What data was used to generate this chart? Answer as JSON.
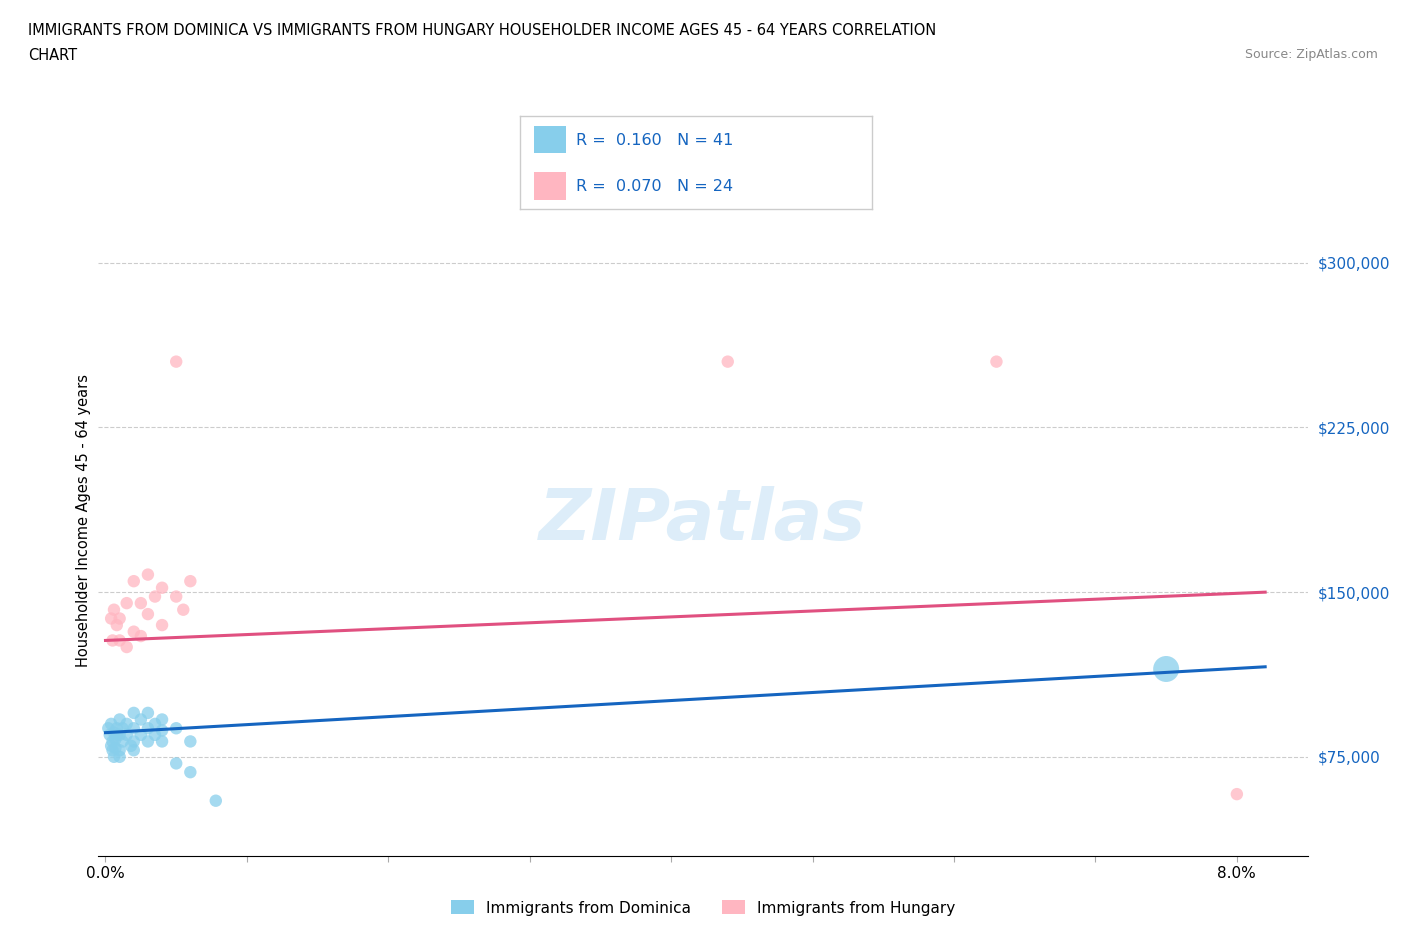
{
  "title_line1": "IMMIGRANTS FROM DOMINICA VS IMMIGRANTS FROM HUNGARY HOUSEHOLDER INCOME AGES 45 - 64 YEARS CORRELATION",
  "title_line2": "CHART",
  "source": "Source: ZipAtlas.com",
  "ylabel": "Householder Income Ages 45 - 64 years",
  "xlim": [
    -0.0005,
    0.085
  ],
  "ylim": [
    30000,
    335000
  ],
  "yticks": [
    75000,
    150000,
    225000,
    300000
  ],
  "ytick_labels": [
    "$75,000",
    "$150,000",
    "$225,000",
    "$300,000"
  ],
  "xticks": [
    0.0,
    0.01,
    0.02,
    0.03,
    0.04,
    0.05,
    0.06,
    0.07,
    0.08
  ],
  "xtick_labels": [
    "0.0%",
    "",
    "",
    "",
    "",
    "",
    "",
    "",
    "8.0%"
  ],
  "dominica_color": "#87CEEB",
  "hungary_color": "#FFB6C1",
  "dominica_line_color": "#1565C0",
  "hungary_line_color": "#E05080",
  "dominica_R": 0.16,
  "dominica_N": 41,
  "hungary_R": 0.07,
  "hungary_N": 24,
  "legend_R_color": "#1565C0",
  "watermark": "ZIPatlas",
  "dominica_points": [
    [
      0.0002,
      88000
    ],
    [
      0.0003,
      85000
    ],
    [
      0.0004,
      80000
    ],
    [
      0.0004,
      90000
    ],
    [
      0.0005,
      82000
    ],
    [
      0.0005,
      78000
    ],
    [
      0.0006,
      86000
    ],
    [
      0.0006,
      75000
    ],
    [
      0.0007,
      83000
    ],
    [
      0.0007,
      79000
    ],
    [
      0.0008,
      85000
    ],
    [
      0.0008,
      88000
    ],
    [
      0.001,
      92000
    ],
    [
      0.001,
      85000
    ],
    [
      0.001,
      78000
    ],
    [
      0.001,
      75000
    ],
    [
      0.0012,
      88000
    ],
    [
      0.0012,
      82000
    ],
    [
      0.0015,
      90000
    ],
    [
      0.0015,
      85000
    ],
    [
      0.0018,
      80000
    ],
    [
      0.002,
      95000
    ],
    [
      0.002,
      88000
    ],
    [
      0.002,
      82000
    ],
    [
      0.002,
      78000
    ],
    [
      0.0025,
      92000
    ],
    [
      0.0025,
      85000
    ],
    [
      0.003,
      95000
    ],
    [
      0.003,
      88000
    ],
    [
      0.003,
      82000
    ],
    [
      0.0035,
      90000
    ],
    [
      0.0035,
      85000
    ],
    [
      0.004,
      92000
    ],
    [
      0.004,
      87000
    ],
    [
      0.004,
      82000
    ],
    [
      0.005,
      88000
    ],
    [
      0.005,
      72000
    ],
    [
      0.006,
      82000
    ],
    [
      0.006,
      68000
    ],
    [
      0.0078,
      55000
    ],
    [
      0.075,
      115000
    ]
  ],
  "dominica_sizes": [
    80,
    80,
    80,
    80,
    80,
    80,
    80,
    80,
    80,
    80,
    80,
    80,
    80,
    80,
    80,
    80,
    80,
    80,
    80,
    80,
    80,
    80,
    80,
    80,
    80,
    80,
    80,
    80,
    80,
    80,
    80,
    80,
    80,
    80,
    80,
    80,
    80,
    80,
    80,
    80,
    350
  ],
  "hungary_points": [
    [
      0.0004,
      138000
    ],
    [
      0.0005,
      128000
    ],
    [
      0.0006,
      142000
    ],
    [
      0.0008,
      135000
    ],
    [
      0.001,
      128000
    ],
    [
      0.001,
      138000
    ],
    [
      0.0015,
      125000
    ],
    [
      0.0015,
      145000
    ],
    [
      0.002,
      132000
    ],
    [
      0.002,
      155000
    ],
    [
      0.0025,
      130000
    ],
    [
      0.0025,
      145000
    ],
    [
      0.003,
      158000
    ],
    [
      0.003,
      140000
    ],
    [
      0.0035,
      148000
    ],
    [
      0.004,
      152000
    ],
    [
      0.004,
      135000
    ],
    [
      0.005,
      148000
    ],
    [
      0.005,
      255000
    ],
    [
      0.0055,
      142000
    ],
    [
      0.006,
      155000
    ],
    [
      0.044,
      255000
    ],
    [
      0.063,
      255000
    ],
    [
      0.08,
      58000
    ]
  ],
  "hungary_sizes": [
    80,
    80,
    80,
    80,
    80,
    80,
    80,
    80,
    80,
    80,
    80,
    80,
    80,
    80,
    80,
    80,
    80,
    80,
    80,
    80,
    80,
    80,
    80,
    80
  ]
}
